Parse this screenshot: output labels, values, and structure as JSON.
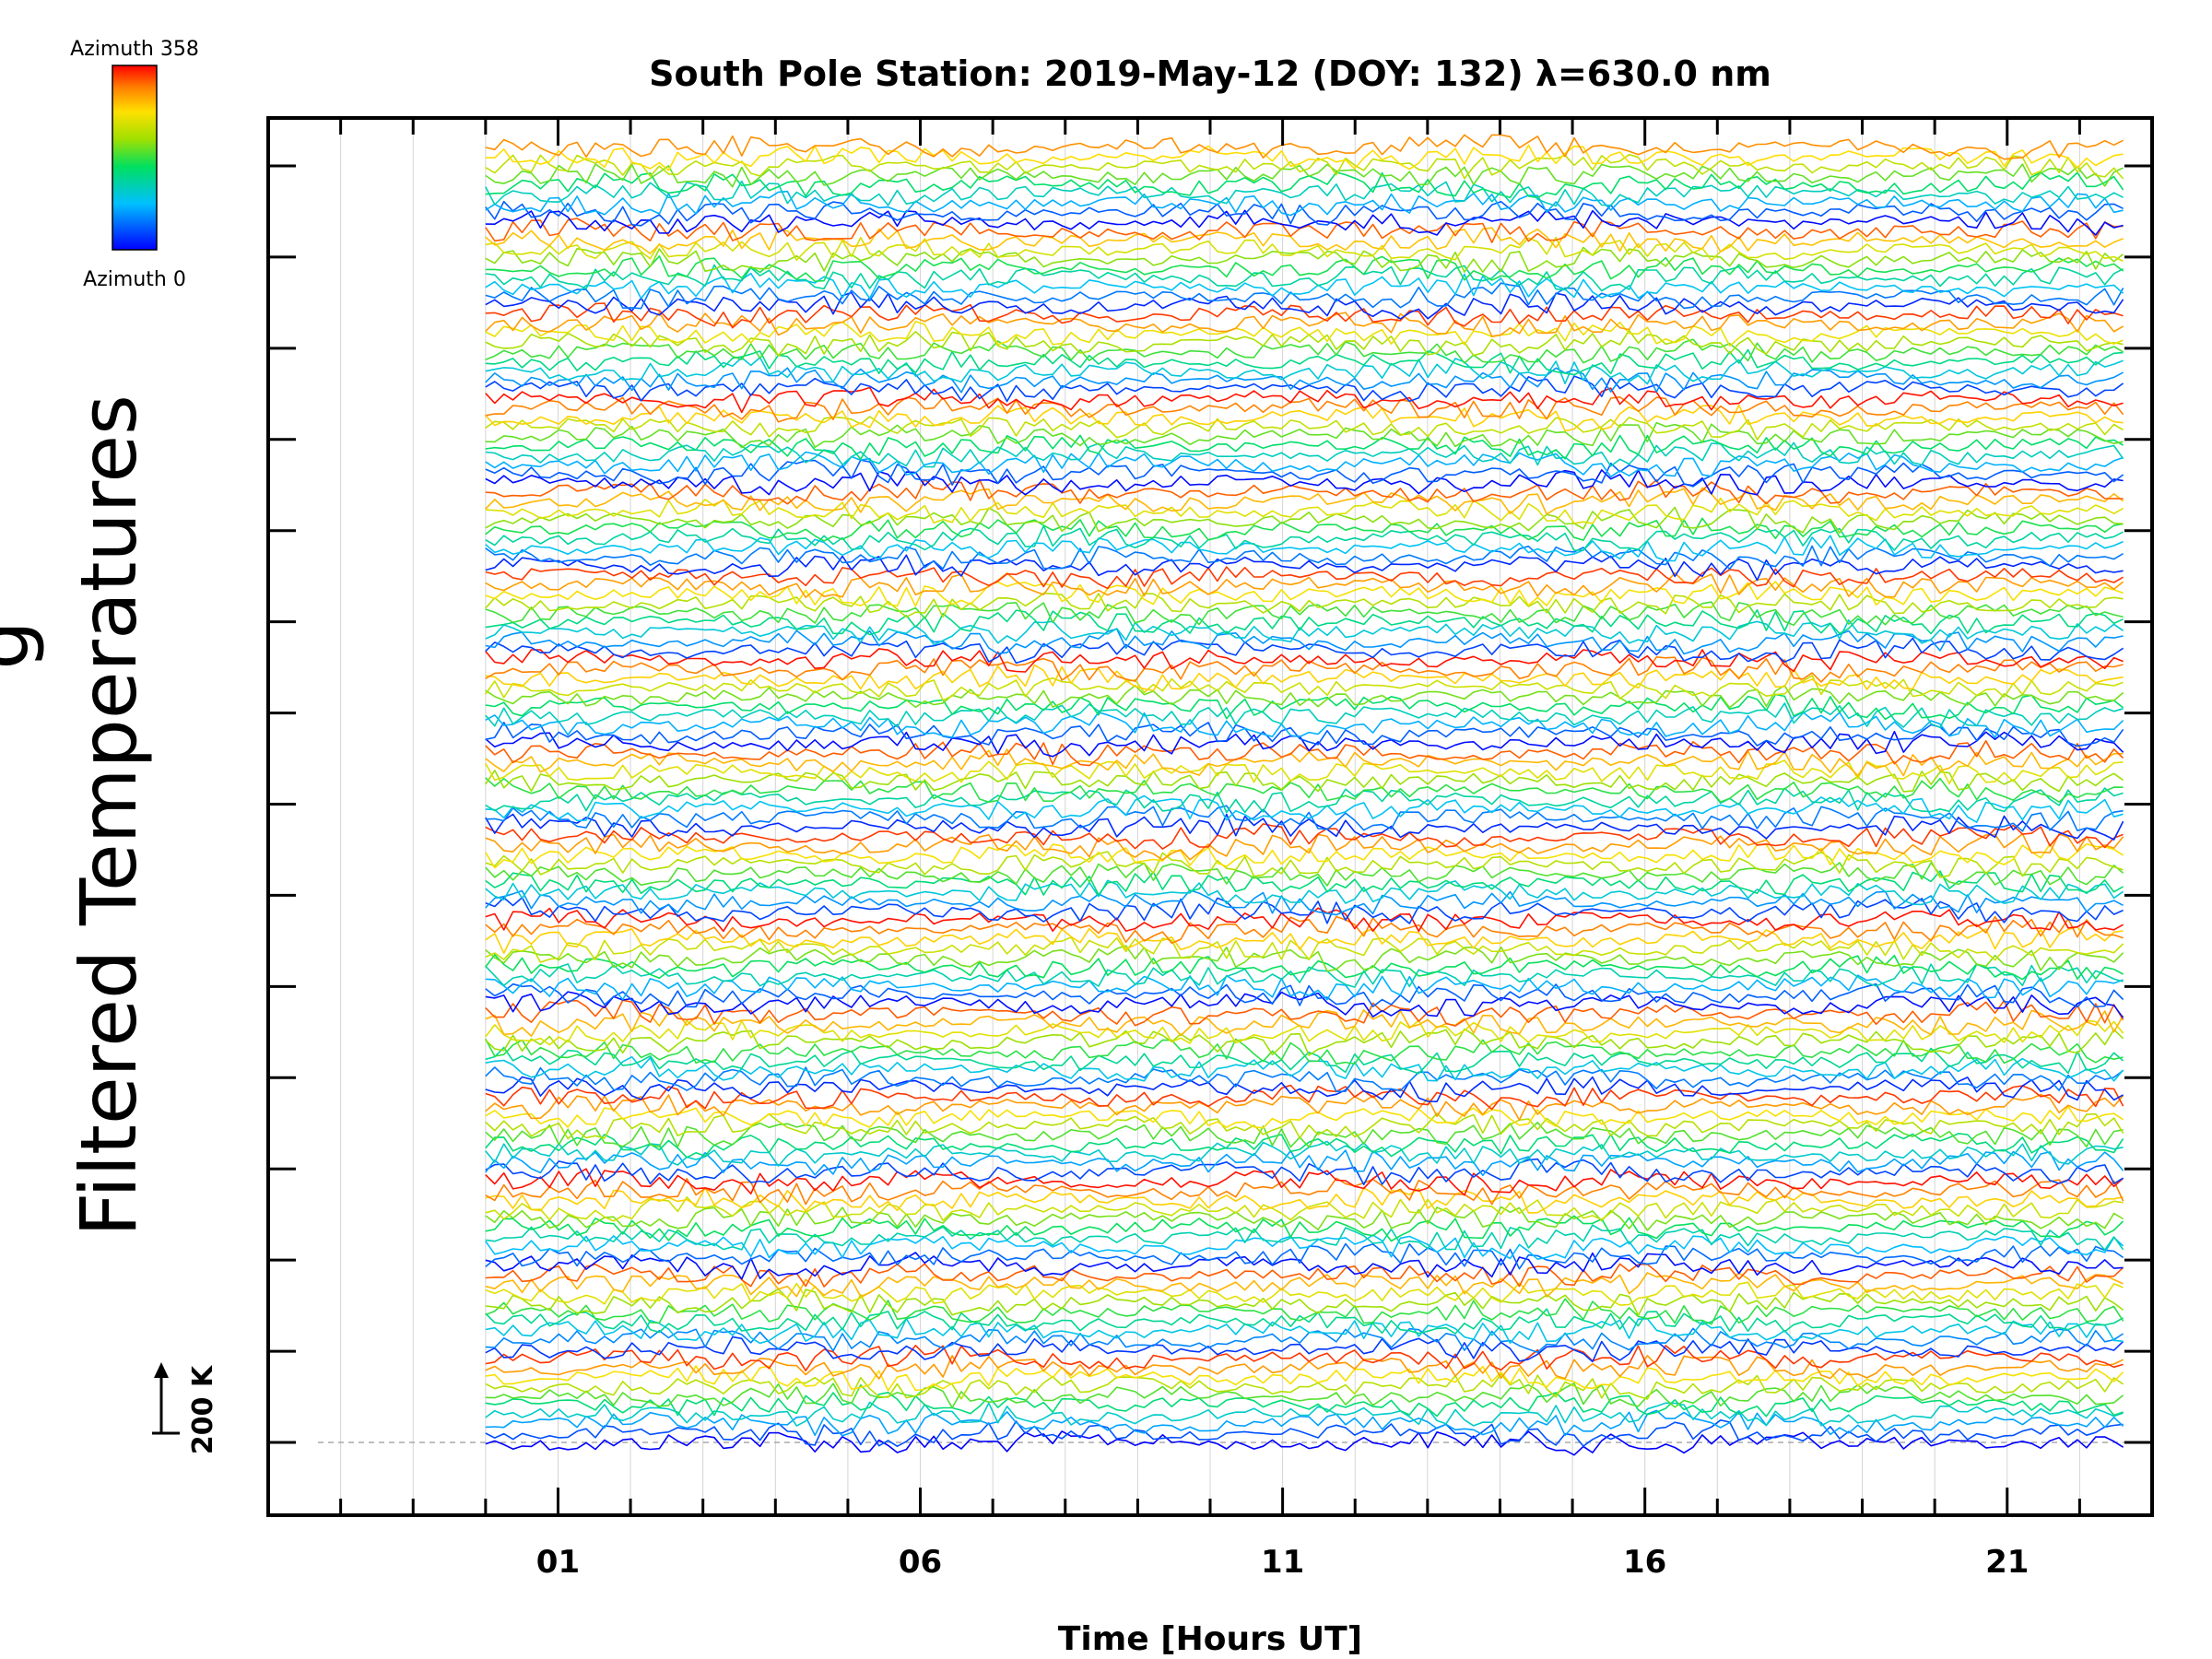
{
  "chart_data": {
    "type": "line",
    "title": "South Pole Station: 2019-May-12 (DOY: 132) λ=630.0 nm",
    "xlabel": "Time [Hours UT]",
    "ylabel": "Filtered Temperatures",
    "ylabel_clipped": "g",
    "xlim": [
      -3,
      23
    ],
    "x_ticks": [
      "01",
      "06",
      "11",
      "16",
      "21"
    ],
    "x_tick_values": [
      1,
      6,
      11,
      16,
      21
    ],
    "grid": "vertical dotted, hourly",
    "data_range_hours": [
      0,
      22.6
    ],
    "stacked_traces": 14,
    "traces_per_stack": 10,
    "scale_bar": {
      "label": "200 K",
      "value_K": 200
    },
    "colorbar": {
      "top_label": "Azimuth 358",
      "bottom_label": "Azimuth 0",
      "min": 0,
      "max": 358,
      "colormap": "rainbow (blue→cyan→green→yellow→red)"
    },
    "colors": {
      "axis": "#000000",
      "grid": "#d4d4d4",
      "baseline": "#aaaaaa"
    }
  }
}
